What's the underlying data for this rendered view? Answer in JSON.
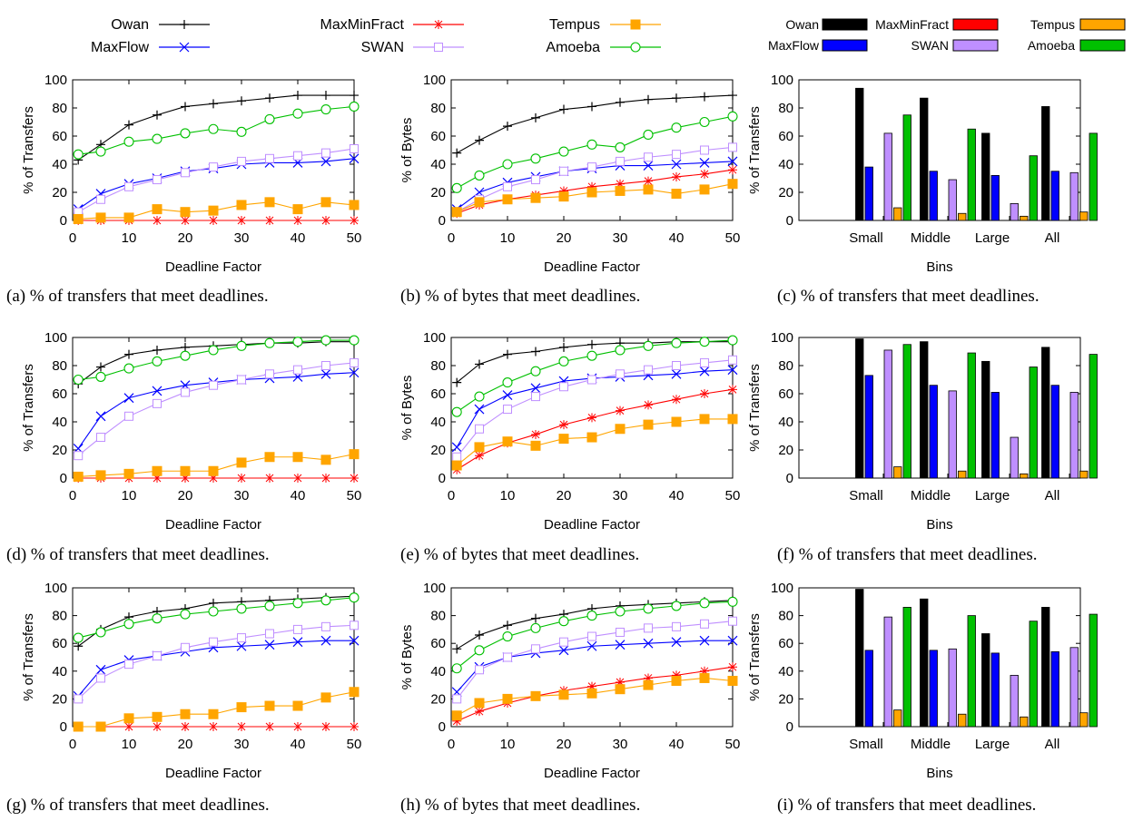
{
  "colors": {
    "Owan": "#000000",
    "MaxFlow": "#0000ff",
    "MaxMinFract": "#ff0000",
    "SWAN": "#bf8fff",
    "Tempus": "#ffa500",
    "Amoeba": "#00c000"
  },
  "markers": {
    "Owan": "plus",
    "MaxFlow": "cross",
    "MaxMinFract": "star",
    "SWAN": "open-square",
    "Tempus": "filled-square",
    "Amoeba": "open-circle"
  },
  "legend_line": [
    "Owan",
    "MaxFlow",
    "MaxMinFract",
    "SWAN",
    "Tempus",
    "Amoeba"
  ],
  "legend_bar": [
    "Owan",
    "MaxFlow",
    "MaxMinFract",
    "SWAN",
    "Tempus",
    "Amoeba"
  ],
  "chart_data": [
    {
      "id": "a",
      "type": "line",
      "caption": "(a) % of transfers that meet deadlines.",
      "xlabel": "Deadline Factor",
      "ylabel": "% of Transfers",
      "xlim": [
        0,
        50
      ],
      "ylim": [
        0,
        100
      ],
      "xticks": [
        0,
        10,
        20,
        30,
        40,
        50
      ],
      "yticks": [
        0,
        20,
        40,
        60,
        80,
        100
      ],
      "x": [
        1,
        5,
        10,
        15,
        20,
        25,
        30,
        35,
        40,
        45,
        50
      ],
      "series": [
        {
          "name": "Owan",
          "values": [
            43,
            54,
            68,
            75,
            81,
            83,
            85,
            87,
            89,
            89,
            89
          ]
        },
        {
          "name": "MaxFlow",
          "values": [
            8,
            19,
            26,
            30,
            35,
            37,
            40,
            41,
            41,
            42,
            44
          ]
        },
        {
          "name": "MaxMinFract",
          "values": [
            0,
            0,
            0,
            0,
            0,
            0,
            0,
            0,
            0,
            0,
            0
          ]
        },
        {
          "name": "SWAN",
          "values": [
            6,
            15,
            24,
            29,
            34,
            38,
            42,
            44,
            46,
            48,
            51
          ]
        },
        {
          "name": "Tempus",
          "values": [
            1,
            2,
            2,
            8,
            6,
            7,
            11,
            13,
            8,
            13,
            11
          ]
        },
        {
          "name": "Amoeba",
          "values": [
            47,
            49,
            56,
            58,
            62,
            65,
            63,
            72,
            76,
            79,
            81
          ]
        }
      ]
    },
    {
      "id": "b",
      "type": "line",
      "caption": "(b) % of bytes that meet deadlines.",
      "xlabel": "Deadline Factor",
      "ylabel": "% of Bytes",
      "xlim": [
        0,
        50
      ],
      "ylim": [
        0,
        100
      ],
      "xticks": [
        0,
        10,
        20,
        30,
        40,
        50
      ],
      "yticks": [
        0,
        20,
        40,
        60,
        80,
        100
      ],
      "x": [
        1,
        5,
        10,
        15,
        20,
        25,
        30,
        35,
        40,
        45,
        50
      ],
      "series": [
        {
          "name": "Owan",
          "values": [
            48,
            57,
            67,
            73,
            79,
            81,
            84,
            86,
            87,
            88,
            89
          ]
        },
        {
          "name": "MaxFlow",
          "values": [
            8,
            20,
            27,
            31,
            35,
            37,
            39,
            39,
            40,
            41,
            42
          ]
        },
        {
          "name": "MaxMinFract",
          "values": [
            5,
            11,
            15,
            18,
            21,
            24,
            26,
            28,
            31,
            33,
            36
          ]
        },
        {
          "name": "SWAN",
          "values": [
            6,
            15,
            24,
            29,
            35,
            38,
            42,
            45,
            47,
            50,
            52
          ]
        },
        {
          "name": "Tempus",
          "values": [
            6,
            13,
            15,
            16,
            17,
            20,
            21,
            22,
            19,
            22,
            26
          ]
        },
        {
          "name": "Amoeba",
          "values": [
            23,
            32,
            40,
            44,
            49,
            54,
            52,
            61,
            66,
            70,
            74
          ]
        }
      ]
    },
    {
      "id": "c",
      "type": "bar",
      "caption": "(c) % of transfers that meet deadlines.",
      "xlabel": "Bins",
      "ylabel": "% of Transfers",
      "ylim": [
        0,
        100
      ],
      "yticks": [
        0,
        20,
        40,
        60,
        80,
        100
      ],
      "categories": [
        "Small",
        "Middle",
        "Large",
        "All"
      ],
      "series": [
        {
          "name": "Owan",
          "values": [
            94,
            87,
            62,
            81
          ]
        },
        {
          "name": "MaxFlow",
          "values": [
            38,
            35,
            32,
            35
          ]
        },
        {
          "name": "MaxMinFract",
          "values": [
            0,
            0,
            0,
            0
          ]
        },
        {
          "name": "SWAN",
          "values": [
            62,
            29,
            12,
            34
          ]
        },
        {
          "name": "Tempus",
          "values": [
            9,
            5,
            3,
            6
          ]
        },
        {
          "name": "Amoeba",
          "values": [
            75,
            65,
            46,
            62
          ]
        }
      ]
    },
    {
      "id": "d",
      "type": "line",
      "caption": "(d) % of transfers that meet deadlines.",
      "xlabel": "Deadline Factor",
      "ylabel": "% of Transfers",
      "xlim": [
        0,
        50
      ],
      "ylim": [
        0,
        100
      ],
      "xticks": [
        0,
        10,
        20,
        30,
        40,
        50
      ],
      "yticks": [
        0,
        20,
        40,
        60,
        80,
        100
      ],
      "x": [
        1,
        5,
        10,
        15,
        20,
        25,
        30,
        35,
        40,
        45,
        50
      ],
      "series": [
        {
          "name": "Owan",
          "values": [
            67,
            79,
            88,
            91,
            93,
            94,
            95,
            96,
            96,
            97,
            97
          ]
        },
        {
          "name": "MaxFlow",
          "values": [
            21,
            44,
            57,
            62,
            66,
            68,
            70,
            71,
            72,
            74,
            75
          ]
        },
        {
          "name": "MaxMinFract",
          "values": [
            0,
            0,
            0,
            0,
            0,
            0,
            0,
            0,
            0,
            0,
            0
          ]
        },
        {
          "name": "SWAN",
          "values": [
            16,
            29,
            44,
            53,
            61,
            66,
            70,
            74,
            77,
            80,
            82
          ]
        },
        {
          "name": "Tempus",
          "values": [
            1,
            2,
            3,
            5,
            5,
            5,
            11,
            15,
            15,
            13,
            17
          ]
        },
        {
          "name": "Amoeba",
          "values": [
            70,
            72,
            78,
            83,
            87,
            91,
            94,
            96,
            97,
            98,
            98
          ]
        }
      ]
    },
    {
      "id": "e",
      "type": "line",
      "caption": "(e) % of bytes that meet deadlines.",
      "xlabel": "Deadline Factor",
      "ylabel": "% of Bytes",
      "xlim": [
        0,
        50
      ],
      "ylim": [
        0,
        100
      ],
      "xticks": [
        0,
        10,
        20,
        30,
        40,
        50
      ],
      "yticks": [
        0,
        20,
        40,
        60,
        80,
        100
      ],
      "x": [
        1,
        5,
        10,
        15,
        20,
        25,
        30,
        35,
        40,
        45,
        50
      ],
      "series": [
        {
          "name": "Owan",
          "values": [
            68,
            81,
            88,
            90,
            93,
            95,
            96,
            96,
            97,
            97,
            97
          ]
        },
        {
          "name": "MaxFlow",
          "values": [
            22,
            49,
            59,
            64,
            69,
            71,
            72,
            73,
            74,
            76,
            77
          ]
        },
        {
          "name": "MaxMinFract",
          "values": [
            6,
            16,
            25,
            31,
            38,
            43,
            48,
            52,
            56,
            60,
            63
          ]
        },
        {
          "name": "SWAN",
          "values": [
            15,
            35,
            49,
            58,
            65,
            70,
            74,
            77,
            80,
            82,
            84
          ]
        },
        {
          "name": "Tempus",
          "values": [
            9,
            22,
            26,
            23,
            28,
            29,
            35,
            38,
            40,
            42,
            42
          ]
        },
        {
          "name": "Amoeba",
          "values": [
            47,
            58,
            68,
            76,
            83,
            87,
            91,
            94,
            96,
            97,
            98
          ]
        }
      ]
    },
    {
      "id": "f",
      "type": "bar",
      "caption": "(f) % of transfers that meet deadlines.",
      "xlabel": "Bins",
      "ylabel": "% of Transfers",
      "ylim": [
        0,
        100
      ],
      "yticks": [
        0,
        20,
        40,
        60,
        80,
        100
      ],
      "categories": [
        "Small",
        "Middle",
        "Large",
        "All"
      ],
      "series": [
        {
          "name": "Owan",
          "values": [
            99,
            97,
            83,
            93
          ]
        },
        {
          "name": "MaxFlow",
          "values": [
            73,
            66,
            61,
            66
          ]
        },
        {
          "name": "MaxMinFract",
          "values": [
            0,
            0,
            0,
            0
          ]
        },
        {
          "name": "SWAN",
          "values": [
            91,
            62,
            29,
            61
          ]
        },
        {
          "name": "Tempus",
          "values": [
            8,
            5,
            3,
            5
          ]
        },
        {
          "name": "Amoeba",
          "values": [
            95,
            89,
            79,
            88
          ]
        }
      ]
    },
    {
      "id": "g",
      "type": "line",
      "caption": "(g) % of transfers that meet deadlines.",
      "xlabel": "Deadline Factor",
      "ylabel": "% of Transfers",
      "xlim": [
        0,
        50
      ],
      "ylim": [
        0,
        100
      ],
      "xticks": [
        0,
        10,
        20,
        30,
        40,
        50
      ],
      "yticks": [
        0,
        20,
        40,
        60,
        80,
        100
      ],
      "x": [
        1,
        5,
        10,
        15,
        20,
        25,
        30,
        35,
        40,
        45,
        50
      ],
      "series": [
        {
          "name": "Owan",
          "values": [
            58,
            70,
            79,
            83,
            85,
            89,
            90,
            91,
            92,
            93,
            94
          ]
        },
        {
          "name": "MaxFlow",
          "values": [
            22,
            41,
            48,
            51,
            54,
            57,
            58,
            59,
            61,
            62,
            62
          ]
        },
        {
          "name": "MaxMinFract",
          "values": [
            0,
            0,
            0,
            0,
            0,
            0,
            0,
            0,
            0,
            0,
            0
          ]
        },
        {
          "name": "SWAN",
          "values": [
            20,
            35,
            45,
            51,
            57,
            61,
            64,
            67,
            70,
            72,
            73
          ]
        },
        {
          "name": "Tempus",
          "values": [
            0,
            0,
            6,
            7,
            9,
            9,
            14,
            15,
            15,
            21,
            25
          ]
        },
        {
          "name": "Amoeba",
          "values": [
            64,
            68,
            74,
            78,
            81,
            83,
            85,
            87,
            89,
            91,
            93
          ]
        }
      ]
    },
    {
      "id": "h",
      "type": "line",
      "caption": "(h) % of bytes that meet deadlines.",
      "xlabel": "Deadline Factor",
      "ylabel": "% of Bytes",
      "xlim": [
        0,
        50
      ],
      "ylim": [
        0,
        100
      ],
      "xticks": [
        0,
        10,
        20,
        30,
        40,
        50
      ],
      "yticks": [
        0,
        20,
        40,
        60,
        80,
        100
      ],
      "x": [
        1,
        5,
        10,
        15,
        20,
        25,
        30,
        35,
        40,
        45,
        50
      ],
      "series": [
        {
          "name": "Owan",
          "values": [
            56,
            66,
            73,
            78,
            81,
            85,
            87,
            88,
            89,
            90,
            91
          ]
        },
        {
          "name": "MaxFlow",
          "values": [
            25,
            43,
            50,
            53,
            55,
            58,
            59,
            60,
            61,
            62,
            62
          ]
        },
        {
          "name": "MaxMinFract",
          "values": [
            4,
            11,
            17,
            22,
            26,
            29,
            32,
            35,
            37,
            40,
            43
          ]
        },
        {
          "name": "SWAN",
          "values": [
            20,
            41,
            50,
            56,
            61,
            65,
            68,
            71,
            72,
            74,
            76
          ]
        },
        {
          "name": "Tempus",
          "values": [
            8,
            17,
            20,
            22,
            23,
            24,
            27,
            30,
            33,
            35,
            33
          ]
        },
        {
          "name": "Amoeba",
          "values": [
            42,
            55,
            65,
            71,
            76,
            80,
            83,
            85,
            87,
            89,
            90
          ]
        }
      ]
    },
    {
      "id": "i",
      "type": "bar",
      "caption": "(i) % of transfers that meet deadlines.",
      "xlabel": "Bins",
      "ylabel": "% of Transfers",
      "ylim": [
        0,
        100
      ],
      "yticks": [
        0,
        20,
        40,
        60,
        80,
        100
      ],
      "categories": [
        "Small",
        "Middle",
        "Large",
        "All"
      ],
      "series": [
        {
          "name": "Owan",
          "values": [
            99,
            92,
            67,
            86
          ]
        },
        {
          "name": "MaxFlow",
          "values": [
            55,
            55,
            53,
            54
          ]
        },
        {
          "name": "MaxMinFract",
          "values": [
            0,
            0,
            0,
            0
          ]
        },
        {
          "name": "SWAN",
          "values": [
            79,
            56,
            37,
            57
          ]
        },
        {
          "name": "Tempus",
          "values": [
            12,
            9,
            7,
            10
          ]
        },
        {
          "name": "Amoeba",
          "values": [
            86,
            80,
            76,
            81
          ]
        }
      ]
    }
  ]
}
